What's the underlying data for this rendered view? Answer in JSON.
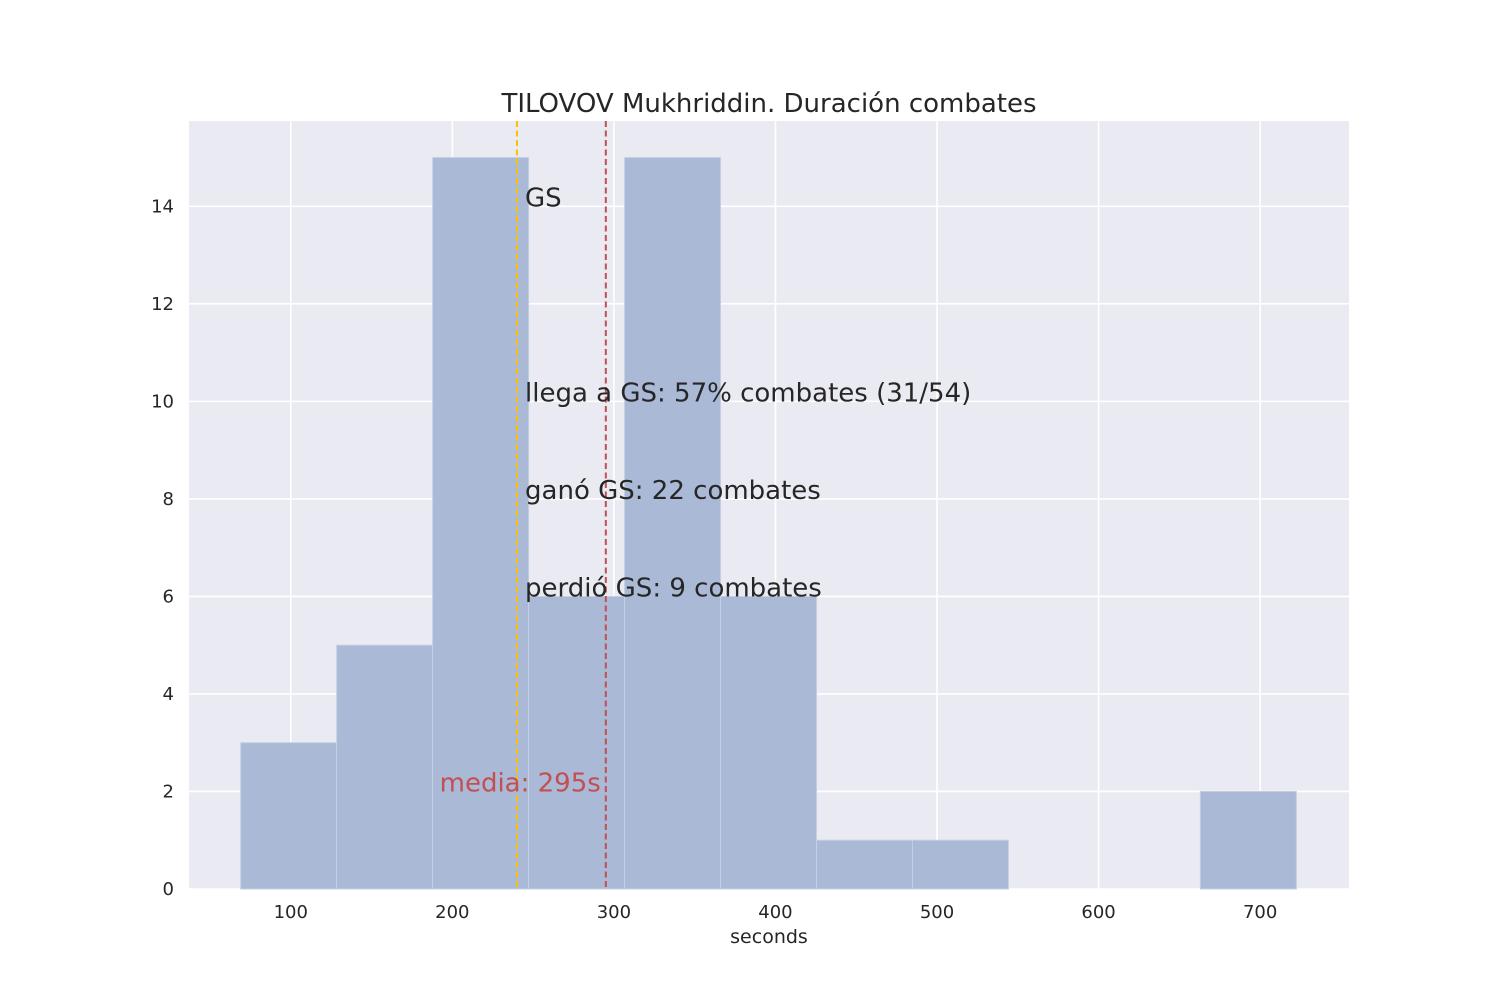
{
  "chart_data": {
    "type": "bar",
    "title": "TILOVOV Mukhriddin. Duración combates",
    "xlabel": "seconds",
    "ylabel": "",
    "xlim": [
      37,
      755
    ],
    "ylim": [
      0,
      15.75
    ],
    "grid": true,
    "xticks": [
      100,
      200,
      300,
      400,
      500,
      600,
      700
    ],
    "yticks": [
      0,
      2,
      4,
      6,
      8,
      10,
      12,
      14
    ],
    "bar_color": "#a9b9d6",
    "background_color": "#eaeaf2",
    "bins": [
      {
        "x0": 69,
        "x1": 128.4,
        "count": 3
      },
      {
        "x0": 128.4,
        "x1": 187.8,
        "count": 5
      },
      {
        "x0": 187.8,
        "x1": 247.2,
        "count": 15
      },
      {
        "x0": 247.2,
        "x1": 306.6,
        "count": 6
      },
      {
        "x0": 306.6,
        "x1": 366,
        "count": 15
      },
      {
        "x0": 366,
        "x1": 425.4,
        "count": 6
      },
      {
        "x0": 425.4,
        "x1": 484.8,
        "count": 1
      },
      {
        "x0": 484.8,
        "x1": 544.2,
        "count": 1
      },
      {
        "x0": 544.2,
        "x1": 603.6,
        "count": 0
      },
      {
        "x0": 603.6,
        "x1": 663,
        "count": 0
      },
      {
        "x0": 663,
        "x1": 722.4,
        "count": 2
      }
    ],
    "vlines": [
      {
        "x": 240,
        "color": "#ffc000",
        "style": "dashed"
      },
      {
        "x": 295,
        "color": "#c44e52",
        "style": "dashed"
      }
    ],
    "annotations": [
      {
        "text": "GS",
        "x": 245,
        "y": 14
      },
      {
        "text": "llega a GS: 57% combates (31/54)",
        "x": 245,
        "y": 10
      },
      {
        "text": "ganó GS: 22 combates",
        "x": 245,
        "y": 8
      },
      {
        "text": "perdió GS: 9 combates",
        "x": 245,
        "y": 6
      }
    ],
    "mean_annotation": {
      "text": "media: 295s",
      "x": 295,
      "y": 2
    }
  }
}
